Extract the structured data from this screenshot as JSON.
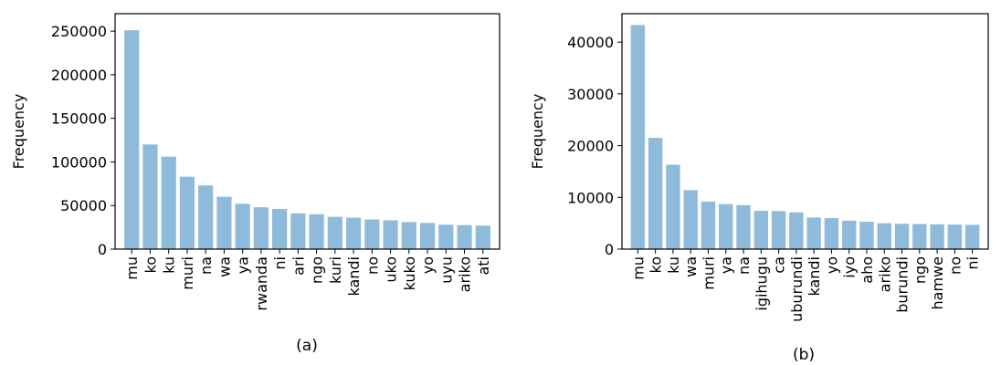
{
  "bar_color": "#8fbbdb",
  "chart_data": [
    {
      "type": "bar",
      "caption": "(a)",
      "xlabel": "",
      "ylabel": "Frequency",
      "ylim": [
        0,
        270000
      ],
      "yticks": [
        0,
        50000,
        100000,
        150000,
        200000,
        250000
      ],
      "categories": [
        "mu",
        "ko",
        "ku",
        "muri",
        "na",
        "wa",
        "ya",
        "rwanda",
        "ni",
        "ari",
        "ngo",
        "kuri",
        "kandi",
        "no",
        "uko",
        "kuko",
        "yo",
        "uyu",
        "ariko",
        "ati"
      ],
      "values": [
        251000,
        120000,
        106000,
        83000,
        73000,
        60000,
        52000,
        48000,
        46000,
        41000,
        40000,
        37000,
        36000,
        34000,
        33000,
        31000,
        30000,
        28000,
        27500,
        27000
      ]
    },
    {
      "type": "bar",
      "caption": "(b)",
      "xlabel": "",
      "ylabel": "Frequency",
      "ylim": [
        0,
        45500
      ],
      "yticks": [
        0,
        10000,
        20000,
        30000,
        40000
      ],
      "categories": [
        "mu",
        "ko",
        "ku",
        "wa",
        "muri",
        "ya",
        "na",
        "igihugu",
        "ca",
        "uburundi",
        "kandi",
        "yo",
        "iyo",
        "aho",
        "ariko",
        "burundi",
        "ngo",
        "hamwe",
        "no",
        "ni"
      ],
      "values": [
        43300,
        21500,
        16300,
        11400,
        9200,
        8700,
        8500,
        7400,
        7350,
        7100,
        6100,
        6000,
        5500,
        5300,
        5000,
        4900,
        4850,
        4800,
        4750,
        4700
      ]
    }
  ]
}
